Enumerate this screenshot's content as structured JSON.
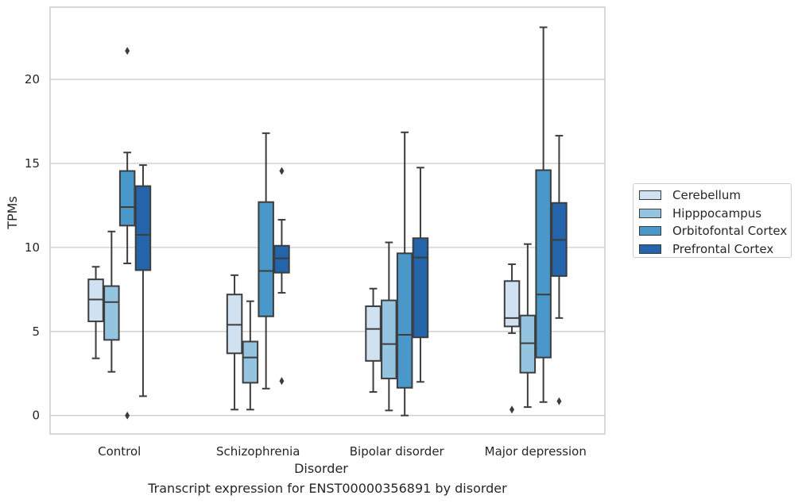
{
  "chart_data": {
    "type": "boxplot",
    "xlabel": "Disorder",
    "ylabel": "TPMs",
    "caption": "Transcript expression for ENST00000356891 by disorder",
    "ylim": [
      -1.1,
      24.3
    ],
    "yticks": [
      0,
      5,
      10,
      15,
      20
    ],
    "grid": "horizontal",
    "legend_placement": "right",
    "categories": [
      "Control",
      "Schizophrenia",
      "Bipolar disorder",
      "Major depression"
    ],
    "series": [
      {
        "name": "Cerebellum",
        "color": "#d0e1f2",
        "boxes": [
          {
            "whislo": 3.4,
            "q1": 5.6,
            "med": 6.9,
            "q3": 8.1,
            "whishi": 8.85,
            "fliers": []
          },
          {
            "whislo": 0.35,
            "q1": 3.7,
            "med": 5.4,
            "q3": 7.2,
            "whishi": 8.35,
            "fliers": []
          },
          {
            "whislo": 1.4,
            "q1": 3.25,
            "med": 5.15,
            "q3": 6.5,
            "whishi": 7.55,
            "fliers": []
          },
          {
            "whislo": 4.9,
            "q1": 5.3,
            "med": 5.8,
            "q3": 8.0,
            "whishi": 9.0,
            "fliers": [
              0.35
            ]
          }
        ]
      },
      {
        "name": "Hipppocampus",
        "color": "#94c4df",
        "boxes": [
          {
            "whislo": 2.6,
            "q1": 4.5,
            "med": 6.75,
            "q3": 7.7,
            "whishi": 10.95,
            "fliers": []
          },
          {
            "whislo": 0.35,
            "q1": 1.95,
            "med": 3.45,
            "q3": 4.4,
            "whishi": 6.8,
            "fliers": []
          },
          {
            "whislo": 0.3,
            "q1": 2.2,
            "med": 4.25,
            "q3": 6.85,
            "whishi": 10.3,
            "fliers": []
          },
          {
            "whislo": 0.5,
            "q1": 2.55,
            "med": 4.3,
            "q3": 5.95,
            "whishi": 10.2,
            "fliers": []
          }
        ]
      },
      {
        "name": "Orbitofontal Cortex",
        "color": "#4a98c9",
        "boxes": [
          {
            "whislo": 9.05,
            "q1": 11.3,
            "med": 12.4,
            "q3": 14.55,
            "whishi": 15.65,
            "fliers": [
              0.0,
              21.7
            ]
          },
          {
            "whislo": 1.6,
            "q1": 5.9,
            "med": 8.6,
            "q3": 12.7,
            "whishi": 16.8,
            "fliers": []
          },
          {
            "whislo": 0.0,
            "q1": 1.65,
            "med": 4.8,
            "q3": 9.65,
            "whishi": 16.85,
            "fliers": []
          },
          {
            "whislo": 0.8,
            "q1": 3.45,
            "med": 7.2,
            "q3": 14.6,
            "whishi": 23.1,
            "fliers": []
          }
        ]
      },
      {
        "name": "Prefrontal Cortex",
        "color": "#2464ab",
        "boxes": [
          {
            "whislo": 1.15,
            "q1": 8.65,
            "med": 10.75,
            "q3": 13.65,
            "whishi": 14.9,
            "fliers": []
          },
          {
            "whislo": 7.3,
            "q1": 8.5,
            "med": 9.35,
            "q3": 10.1,
            "whishi": 11.65,
            "fliers": [
              2.05,
              14.55
            ]
          },
          {
            "whislo": 2.0,
            "q1": 4.65,
            "med": 9.4,
            "q3": 10.55,
            "whishi": 14.75,
            "fliers": []
          },
          {
            "whislo": 5.8,
            "q1": 8.3,
            "med": 10.45,
            "q3": 12.65,
            "whishi": 16.65,
            "fliers": [
              0.85
            ]
          }
        ]
      }
    ]
  }
}
